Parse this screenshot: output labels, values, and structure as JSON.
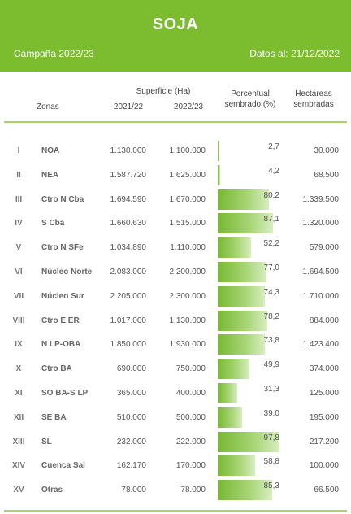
{
  "header": {
    "title": "SOJA",
    "campaign": "Campaña 2022/23",
    "date": "Datos al: 21/12/2022"
  },
  "columns": {
    "zonas": "Zonas",
    "superficie": "Superficie (Ha)",
    "y1": "2021/22",
    "y2": "2022/23",
    "porcentual_1": "Porcentual",
    "porcentual_2": "sembrado (%)",
    "hectareas_1": "Hectáreas",
    "hectareas_2": "sembradas"
  },
  "rows": [
    {
      "roman": "I",
      "zona": "NOA",
      "sup_2122": "1.130.000",
      "sup_2223": "1.100.000",
      "pct": 2.7,
      "pct_label": "2,7",
      "ha": "30.000"
    },
    {
      "roman": "II",
      "zona": "NEA",
      "sup_2122": "1.587.720",
      "sup_2223": "1.625.000",
      "pct": 4.2,
      "pct_label": "4,2",
      "ha": "68.500"
    },
    {
      "roman": "III",
      "zona": "Ctro N Cba",
      "sup_2122": "1.694.590",
      "sup_2223": "1.670.000",
      "pct": 80.2,
      "pct_label": "80,2",
      "ha": "1.339.500"
    },
    {
      "roman": "IV",
      "zona": "S Cba",
      "sup_2122": "1.660.630",
      "sup_2223": "1.515.000",
      "pct": 87.1,
      "pct_label": "87,1",
      "ha": "1.320.000"
    },
    {
      "roman": "V",
      "zona": "Ctro N SFe",
      "sup_2122": "1.034.890",
      "sup_2223": "1.110.000",
      "pct": 52.2,
      "pct_label": "52,2",
      "ha": "579.000"
    },
    {
      "roman": "VI",
      "zona": "Núcleo Norte",
      "sup_2122": "2.083.000",
      "sup_2223": "2.200.000",
      "pct": 77.0,
      "pct_label": "77,0",
      "ha": "1.694.500"
    },
    {
      "roman": "VII",
      "zona": "Núcleo Sur",
      "sup_2122": "2.205.000",
      "sup_2223": "2.300.000",
      "pct": 74.3,
      "pct_label": "74,3",
      "ha": "1.710.000"
    },
    {
      "roman": "VIII",
      "zona": "Ctro E ER",
      "sup_2122": "1.017.000",
      "sup_2223": "1.130.000",
      "pct": 78.2,
      "pct_label": "78,2",
      "ha": "884.000"
    },
    {
      "roman": "IX",
      "zona": "N LP-OBA",
      "sup_2122": "1.850.000",
      "sup_2223": "1.930.000",
      "pct": 73.8,
      "pct_label": "73,8",
      "ha": "1.423.400"
    },
    {
      "roman": "X",
      "zona": "Ctro BA",
      "sup_2122": "690.000",
      "sup_2223": "750.000",
      "pct": 49.9,
      "pct_label": "49,9",
      "ha": "374.000"
    },
    {
      "roman": "XI",
      "zona": "SO BA-S LP",
      "sup_2122": "365.000",
      "sup_2223": "400.000",
      "pct": 31.3,
      "pct_label": "31,3",
      "ha": "125.000"
    },
    {
      "roman": "XII",
      "zona": "SE BA",
      "sup_2122": "510.000",
      "sup_2223": "500.000",
      "pct": 39.0,
      "pct_label": "39,0",
      "ha": "195.000"
    },
    {
      "roman": "XIII",
      "zona": "SL",
      "sup_2122": "232.000",
      "sup_2223": "222.000",
      "pct": 97.8,
      "pct_label": "97,8",
      "ha": "217.200"
    },
    {
      "roman": "XIV",
      "zona": "Cuenca Sal",
      "sup_2122": "162.170",
      "sup_2223": "170.000",
      "pct": 58.8,
      "pct_label": "58,8",
      "ha": "100.000"
    },
    {
      "roman": "XV",
      "zona": "Otras",
      "sup_2122": "78.000",
      "sup_2223": "78.000",
      "pct": 85.3,
      "pct_label": "85,3",
      "ha": "66.500"
    }
  ],
  "colors": {
    "header_bg": "#7cbc2f",
    "bar_start": "#78b832",
    "bar_end": "#d8edc2",
    "rule": "#a8d26a"
  }
}
